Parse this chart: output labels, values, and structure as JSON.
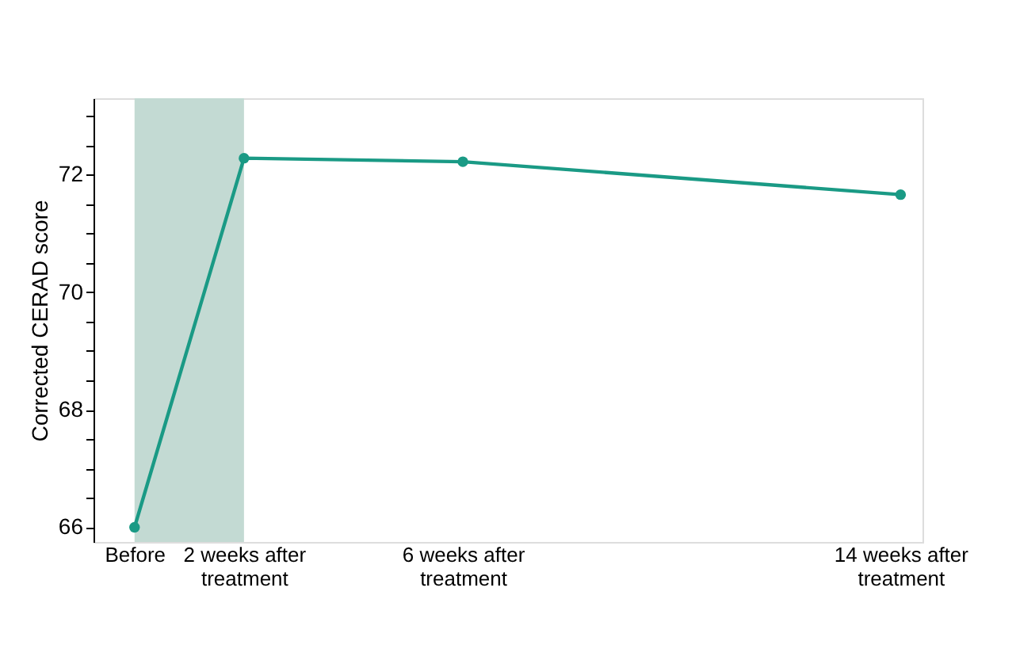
{
  "chart_data": {
    "type": "line",
    "ylabel": "Corrected CERAD score",
    "x": [
      0,
      2,
      6,
      14
    ],
    "series": [
      {
        "color": "#1a9a85",
        "values": [
          66.0,
          72.28,
          72.22,
          71.66
        ]
      }
    ],
    "xlim": [
      -0.75,
      14.4
    ],
    "xticks": [
      {
        "value": 0,
        "label": "Before"
      },
      {
        "value": 2,
        "label": "2 weeks after treatment"
      },
      {
        "value": 6,
        "label": "6 weeks after treatment"
      },
      {
        "value": 14,
        "label": "14 weeks after treatment"
      }
    ],
    "ylim": [
      65.75,
      73.3
    ],
    "yticks": [
      66,
      {
        "value": 66.5,
        "label": null
      },
      68,
      {
        "value": 67,
        "label": null
      },
      {
        "value": 67.5,
        "label": null
      },
      {
        "value": 68.5,
        "label": null
      },
      {
        "value": 69,
        "label": null
      },
      {
        "value": 69.5,
        "label": null
      },
      70,
      {
        "value": 70.5,
        "label": null
      },
      {
        "value": 71,
        "label": null
      },
      {
        "value": 71.5,
        "label": null
      },
      72,
      {
        "value": 72.5,
        "label": null
      },
      {
        "value": 73,
        "label": null
      }
    ],
    "bands": [
      {
        "axis": "x",
        "from": 0,
        "to": 2,
        "color": "#c3dad3"
      }
    ],
    "marker": "circle",
    "line_style": "solid",
    "grid": false
  }
}
